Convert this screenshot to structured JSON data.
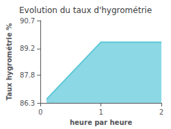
{
  "chart_data": {
    "type": "area",
    "title": "Evolution du taux d'hygrométrie",
    "xlabel": "heure par heure",
    "ylabel": "Taux hygrométrie %",
    "x": [
      0.1,
      1.0,
      2.0
    ],
    "values": [
      86.5,
      89.55,
      89.55
    ],
    "color": "#5bc8d8",
    "xlim": [
      0,
      2
    ],
    "xticks": [
      0,
      1,
      2
    ],
    "ylim": [
      86.3,
      90.7
    ],
    "yticks": [
      86.3,
      87.8,
      89.2,
      90.7
    ],
    "grid": false
  }
}
